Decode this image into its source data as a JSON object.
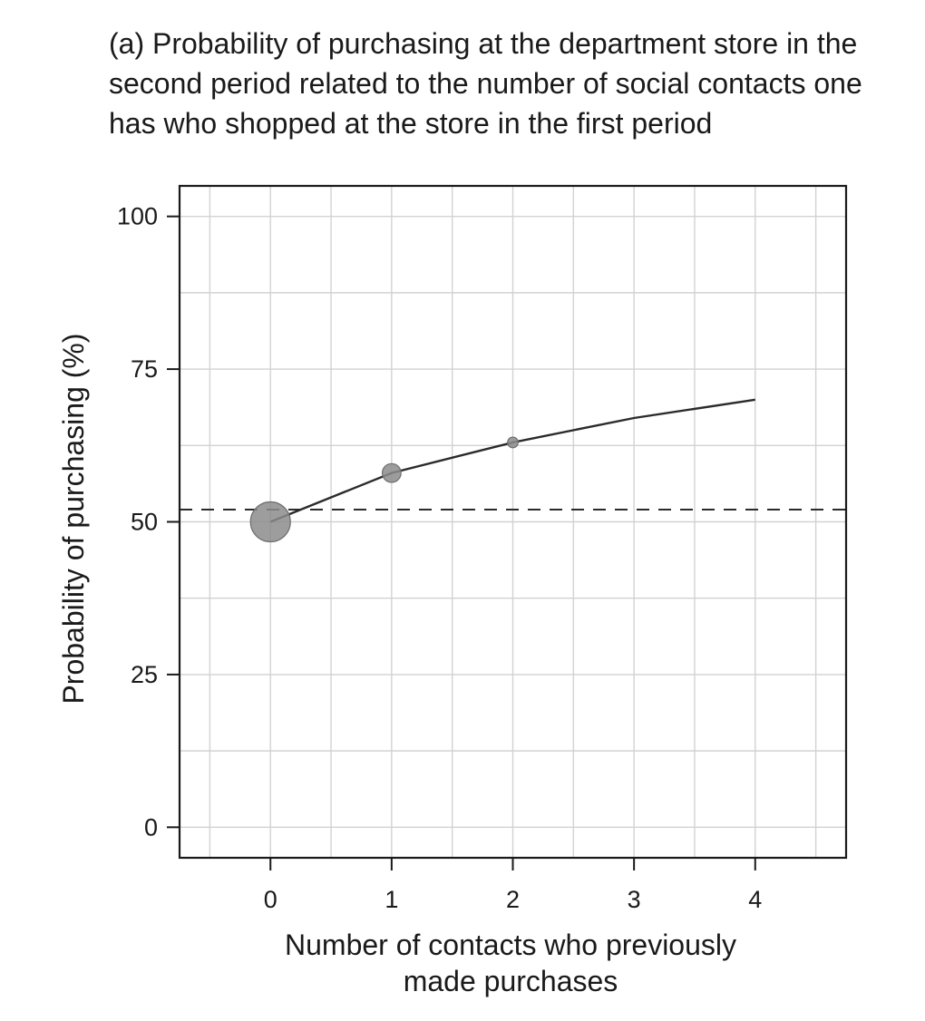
{
  "chart_data": {
    "type": "line",
    "title": "(a) Probability of purchasing at the department store in the second period related to the number of social contacts one has who shopped at the store in the first period",
    "xlabel": [
      "Number of contacts who previously",
      "made purchases"
    ],
    "ylabel": "Probability of purchasing (%)",
    "xlim": [
      -0.75,
      4.75
    ],
    "ylim": [
      -5,
      105
    ],
    "x_ticks": [
      "0",
      "1",
      "2",
      "3",
      "4"
    ],
    "y_ticks": [
      "0",
      "25",
      "50",
      "75",
      "100"
    ],
    "grid": true,
    "series": [
      {
        "x": [
          0,
          1,
          2,
          3,
          4
        ],
        "y": [
          50,
          58,
          63,
          67,
          70
        ]
      }
    ],
    "observed_points": [
      {
        "x": 0,
        "y": 50,
        "relative_size": 1.0
      },
      {
        "x": 1,
        "y": 58,
        "relative_size": 0.35
      },
      {
        "x": 2,
        "y": 63,
        "relative_size": 0.1
      }
    ],
    "reference_line": {
      "y": 52,
      "style": "dashed"
    },
    "colors": {
      "line": "#2b2b2b",
      "points": "#8c8c8c",
      "grid": "#d2d2d2",
      "frame": "#1a1a1a"
    }
  }
}
